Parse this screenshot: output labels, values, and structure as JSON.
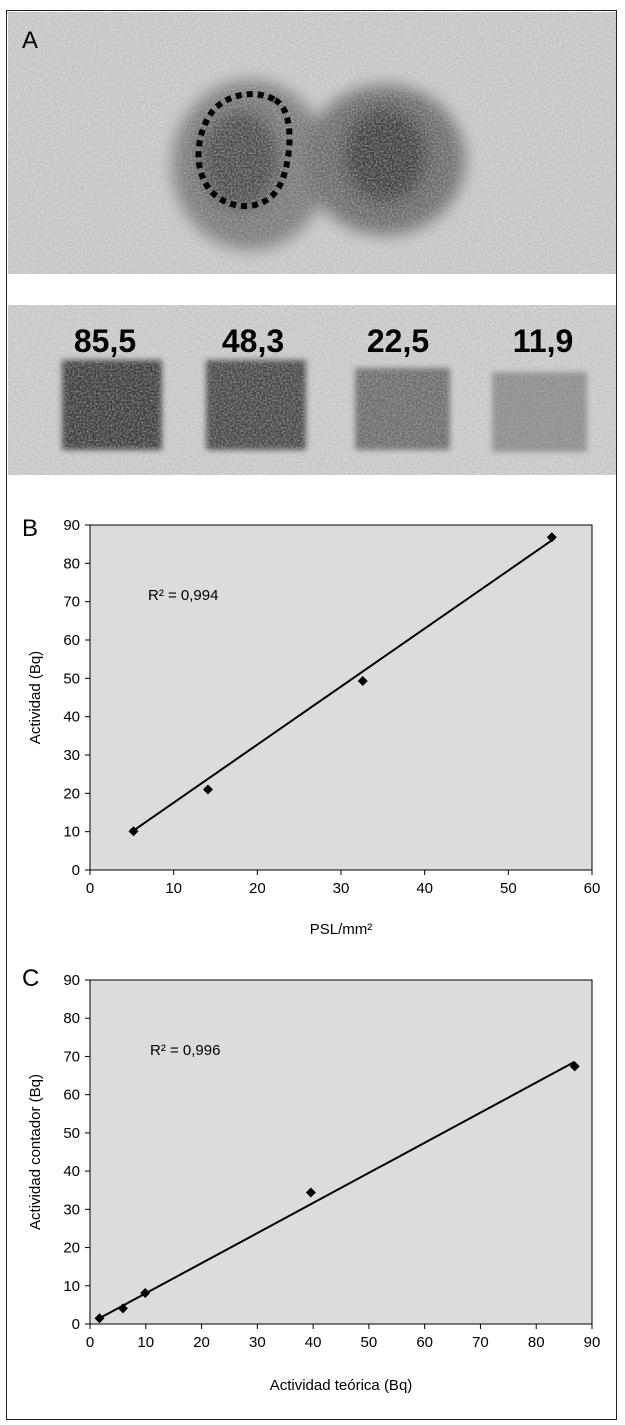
{
  "panel_a": {
    "label": "A",
    "standards": [
      "85,5",
      "48,3",
      "22,5",
      "11,9"
    ]
  },
  "chart_data": [
    {
      "panel": "B",
      "type": "scatter",
      "title": "",
      "xlabel": "PSL/mm²",
      "ylabel": "Actividad (Bq)",
      "xlim": [
        0,
        60
      ],
      "ylim": [
        0,
        90
      ],
      "xticks": [
        "0",
        "10",
        "20",
        "30",
        "40",
        "50",
        "60"
      ],
      "yticks": [
        "0",
        "10",
        "20",
        "30",
        "40",
        "50",
        "60",
        "70",
        "80",
        "90"
      ],
      "annotation": "R² = 0,994",
      "marker": "diamond",
      "points": [
        {
          "x": 5.2,
          "y": 10.1
        },
        {
          "x": 14.1,
          "y": 21.0
        },
        {
          "x": 32.6,
          "y": 49.3
        },
        {
          "x": 55.2,
          "y": 86.8
        }
      ],
      "trendline": [
        [
          5.2,
          10.3
        ],
        [
          55.2,
          86.0
        ]
      ],
      "grid": false,
      "plot_background": "#dcdcdc"
    },
    {
      "panel": "C",
      "type": "scatter",
      "title": "",
      "xlabel": "Actividad teórica (Bq)",
      "ylabel": "Actividad contador (Bq)",
      "xlim": [
        0,
        90
      ],
      "ylim": [
        0,
        90
      ],
      "xticks": [
        "0",
        "10",
        "20",
        "30",
        "40",
        "50",
        "60",
        "70",
        "80",
        "90"
      ],
      "yticks": [
        "0",
        "10",
        "20",
        "30",
        "40",
        "50",
        "60",
        "70",
        "80",
        "90"
      ],
      "annotation": "R² = 0,996",
      "marker": "diamond",
      "points": [
        {
          "x": 1.7,
          "y": 1.5
        },
        {
          "x": 5.9,
          "y": 4.1
        },
        {
          "x": 9.9,
          "y": 8.1
        },
        {
          "x": 39.6,
          "y": 34.4
        },
        {
          "x": 86.9,
          "y": 67.4
        }
      ],
      "trendline": [
        [
          1.7,
          1.5
        ],
        [
          86.9,
          68.6
        ]
      ],
      "grid": false,
      "plot_background": "#dcdcdc"
    }
  ]
}
